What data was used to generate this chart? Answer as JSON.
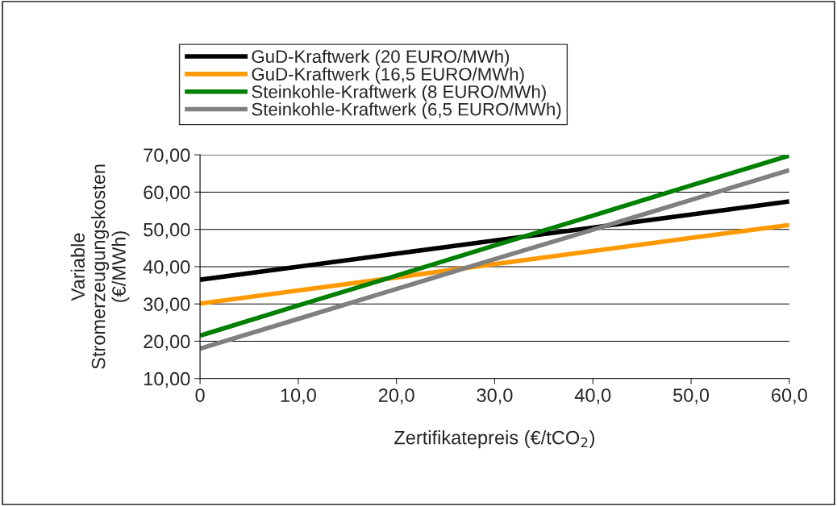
{
  "chart_data": {
    "type": "line",
    "xlabel": "Zertifikatepreis (€/tCO$_{2}$)",
    "ylabel": "Variable\nStromerzeugungskosten\n(€/MWh)",
    "x": [
      0,
      10,
      20,
      30,
      40,
      50,
      60
    ],
    "series": [
      {
        "name": "GuD-Kraftwerk (20 EURO/MWh)",
        "color": "#000000",
        "values": [
          36.5,
          40.0,
          43.5,
          47.0,
          50.5,
          54.0,
          57.5
        ]
      },
      {
        "name": "GuD-Kraftwerk (16,5 EURO/MWh)",
        "color": "#ff9900",
        "values": [
          30.1,
          33.6,
          37.1,
          40.7,
          44.2,
          47.7,
          51.2
        ]
      },
      {
        "name": "Steinkohle-Kraftwerk (8 EURO/MWh)",
        "color": "#008000",
        "values": [
          21.5,
          29.6,
          37.6,
          45.7,
          53.7,
          61.8,
          69.8
        ]
      },
      {
        "name": "Steinkohle-Kraftwerk (6,5 EURO/MWh)",
        "color": "#808080",
        "values": [
          18.0,
          26.0,
          34.0,
          42.0,
          49.9,
          57.9,
          65.9
        ]
      }
    ],
    "xlim": [
      0,
      60
    ],
    "xticks": [
      {
        "value": 0,
        "label": "0"
      },
      {
        "value": 10,
        "label": "10,0"
      },
      {
        "value": 20,
        "label": "20,0"
      },
      {
        "value": 30,
        "label": "30,0"
      },
      {
        "value": 40,
        "label": "40,0"
      },
      {
        "value": 50,
        "label": "50,0"
      },
      {
        "value": 60,
        "label": "60,0"
      }
    ],
    "ylim": [
      10,
      70
    ],
    "yticks": [
      {
        "value": 10,
        "label": "10,00"
      },
      {
        "value": 20,
        "label": "20,00"
      },
      {
        "value": 30,
        "label": "30,00"
      },
      {
        "value": 40,
        "label": "40,00"
      },
      {
        "value": 50,
        "label": "50,00"
      },
      {
        "value": 60,
        "label": "60,00"
      },
      {
        "value": 70,
        "label": "70,00"
      }
    ],
    "grid": "y",
    "legend": "top"
  }
}
